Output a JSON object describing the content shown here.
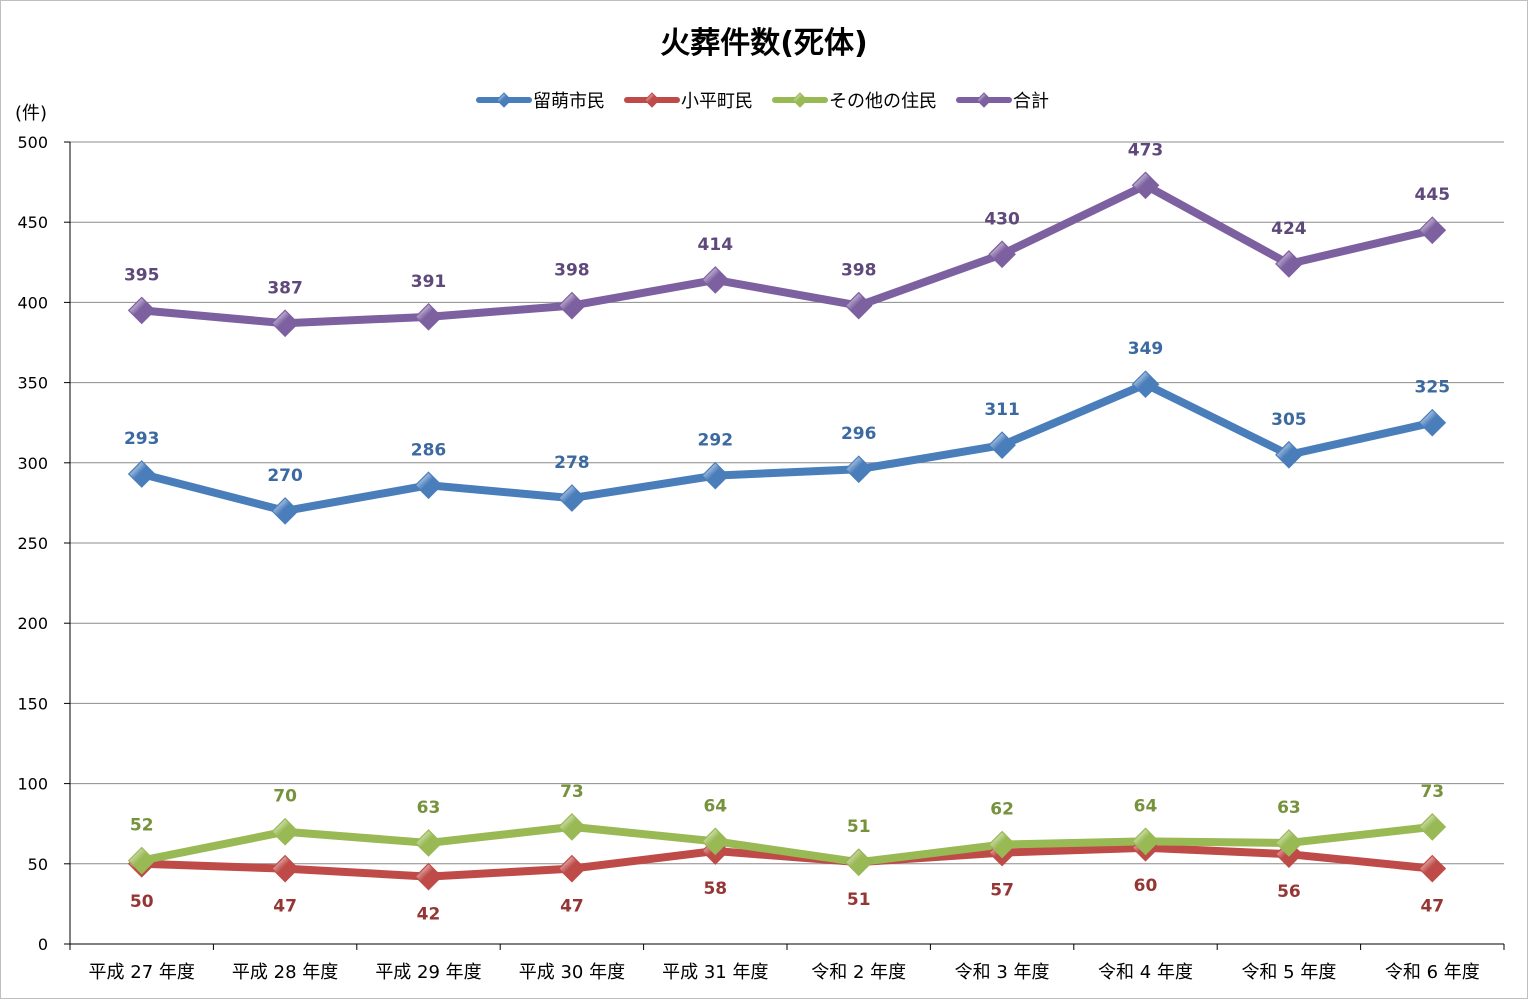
{
  "chart_data": {
    "type": "line",
    "title": "火葬件数(死体)",
    "ylabel": "(件)",
    "xlabel": "",
    "ylim": [
      0,
      500
    ],
    "ytick_step": 50,
    "yticks": [
      "0",
      "50",
      "100",
      "150",
      "200",
      "250",
      "300",
      "350",
      "400",
      "450",
      "500"
    ],
    "grid": true,
    "legend_position": "top",
    "categories": [
      "平成 27 年度",
      "平成 28 年度",
      "平成 29 年度",
      "平成 30 年度",
      "平成 31 年度",
      "令和 2 年度",
      "令和 3 年度",
      "令和 4 年度",
      "令和 5 年度",
      "令和 6 年度"
    ],
    "series": [
      {
        "name": "留萌市民",
        "color": "#4a7ebb",
        "label_color": "#3c6aa0",
        "label_position": "above",
        "values": [
          293,
          270,
          286,
          278,
          292,
          296,
          311,
          349,
          305,
          325
        ]
      },
      {
        "name": "小平町民",
        "color": "#be4b48",
        "label_color": "#943634",
        "label_position": "below",
        "values": [
          50,
          47,
          42,
          47,
          58,
          51,
          57,
          60,
          56,
          47
        ]
      },
      {
        "name": "その他の住民",
        "color": "#98b954",
        "label_color": "#76923c",
        "label_position": "above",
        "values": [
          52,
          70,
          63,
          73,
          64,
          51,
          62,
          64,
          63,
          73
        ]
      },
      {
        "name": "合計",
        "color": "#7d60a0",
        "label_color": "#5f497a",
        "label_position": "above",
        "values": [
          395,
          387,
          391,
          398,
          414,
          398,
          430,
          473,
          424,
          445
        ]
      }
    ]
  }
}
